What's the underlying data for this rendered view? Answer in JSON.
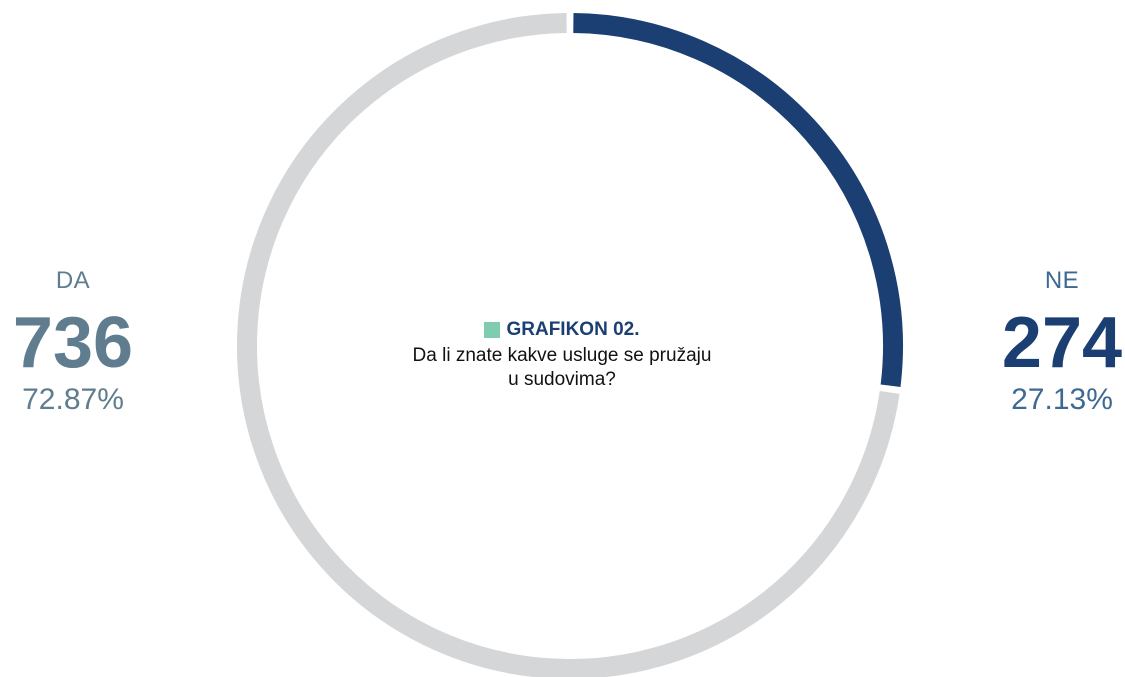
{
  "chart_data": {
    "type": "pie",
    "title": "GRAFIKON 02.",
    "subtitle": "Da li znate kakve usluge se pružaju u sudovima?",
    "legend_square_color": "#7fcdb0",
    "slices": [
      {
        "name": "NE",
        "count": "274",
        "percent_label": "27.13%",
        "value": 27.13,
        "color": "#1c3f73"
      },
      {
        "name": "DA",
        "count": "736",
        "percent_label": "72.87%",
        "value": 72.87,
        "color": "#d5d6d8"
      }
    ]
  },
  "center": {
    "title": "GRAFIKON 02.",
    "question_line1": "Da li znate kakve usluge se pružaju",
    "question_line2": "u sudovima?"
  },
  "da": {
    "label": "DA",
    "count": "736",
    "percent": "72.87%"
  },
  "ne": {
    "label": "NE",
    "count": "274",
    "percent": "27.13%"
  }
}
